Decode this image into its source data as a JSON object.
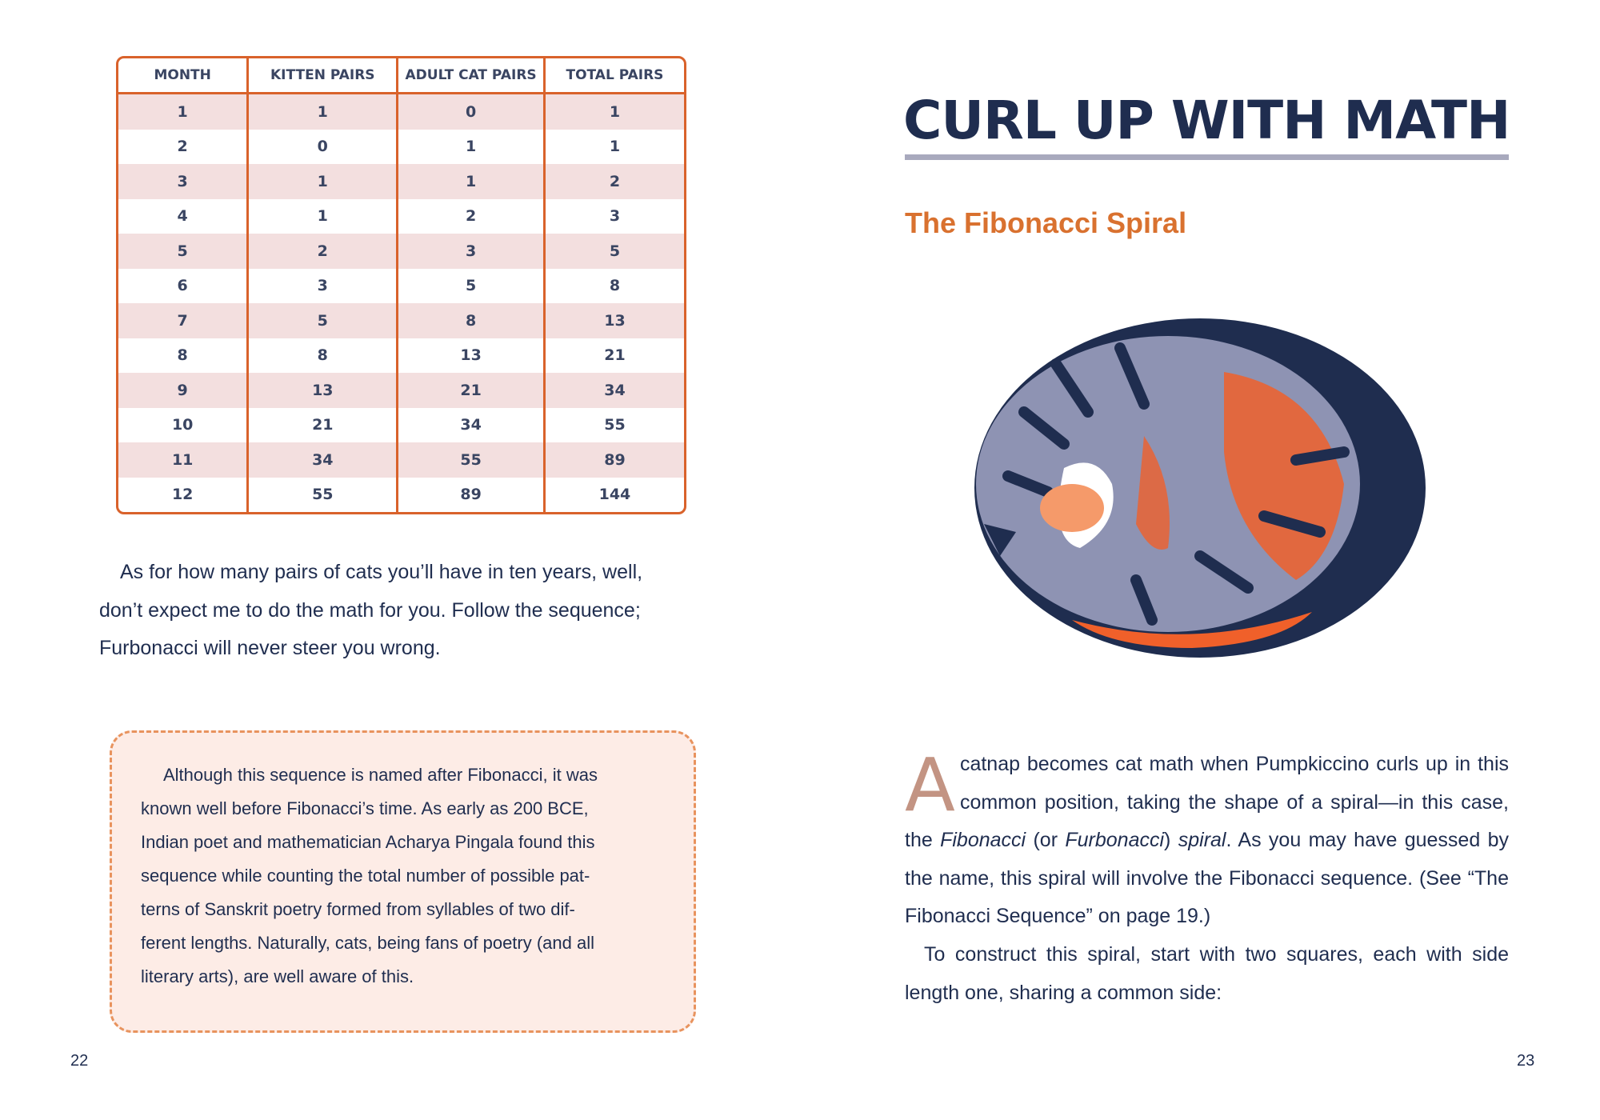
{
  "table": {
    "header": [
      "MONTH",
      "KITTEN PAIRS",
      "ADULT CAT PAIRS",
      "TOTAL PAIRS"
    ],
    "rows": [
      [
        1,
        1,
        0,
        1
      ],
      [
        2,
        0,
        1,
        1
      ],
      [
        3,
        1,
        1,
        2
      ],
      [
        4,
        1,
        2,
        3
      ],
      [
        5,
        2,
        3,
        5
      ],
      [
        6,
        3,
        5,
        8
      ],
      [
        7,
        5,
        8,
        13
      ],
      [
        8,
        8,
        13,
        21
      ],
      [
        9,
        13,
        21,
        34
      ],
      [
        10,
        21,
        34,
        55
      ],
      [
        11,
        34,
        55,
        89
      ],
      [
        12,
        55,
        89,
        144
      ]
    ]
  },
  "left_paragraph": {
    "lines": [
      "As for how many pairs of cats you’ll have in ten years, well,",
      "don’t expect me to do the math for you. Follow the sequence;",
      "Furbonacci will never steer you wrong."
    ]
  },
  "callout": {
    "lines": [
      "Although this sequence is named after Fibonacci, it was",
      "known well before Fibonacci’s time. As early as 200 BCE,",
      "Indian poet and mathematician Acharya Pingala found this",
      "sequence while counting the total number of possible pat-",
      "terns of Sanskrit poetry formed from syllables of two dif-",
      "ferent lengths. Naturally, cats, being fans of poetry (and all",
      "literary arts), are well aware of this."
    ]
  },
  "right_page": {
    "title": "CURL UP WITH MATH",
    "subtitle": "The Fibonacci Spiral",
    "paragraph1": {
      "drop_cap": "A",
      "segments": [
        "catnap becomes cat math when Pumpkiccino curls up in this common position, taking the shape of a spiral—in this case, the ",
        "Fibonacci",
        " (or ",
        "Furbonacci",
        ") ",
        "spiral",
        ". As you may have guessed by the name, this spiral will involve the Fibonacci sequence. (See “The Fibonacci Sequence” on page 19.)"
      ]
    },
    "paragraph2": "To construct this spiral, start with two squares, each with side length one, sharing a common side:"
  },
  "page_numbers": [
    "22",
    "23"
  ]
}
